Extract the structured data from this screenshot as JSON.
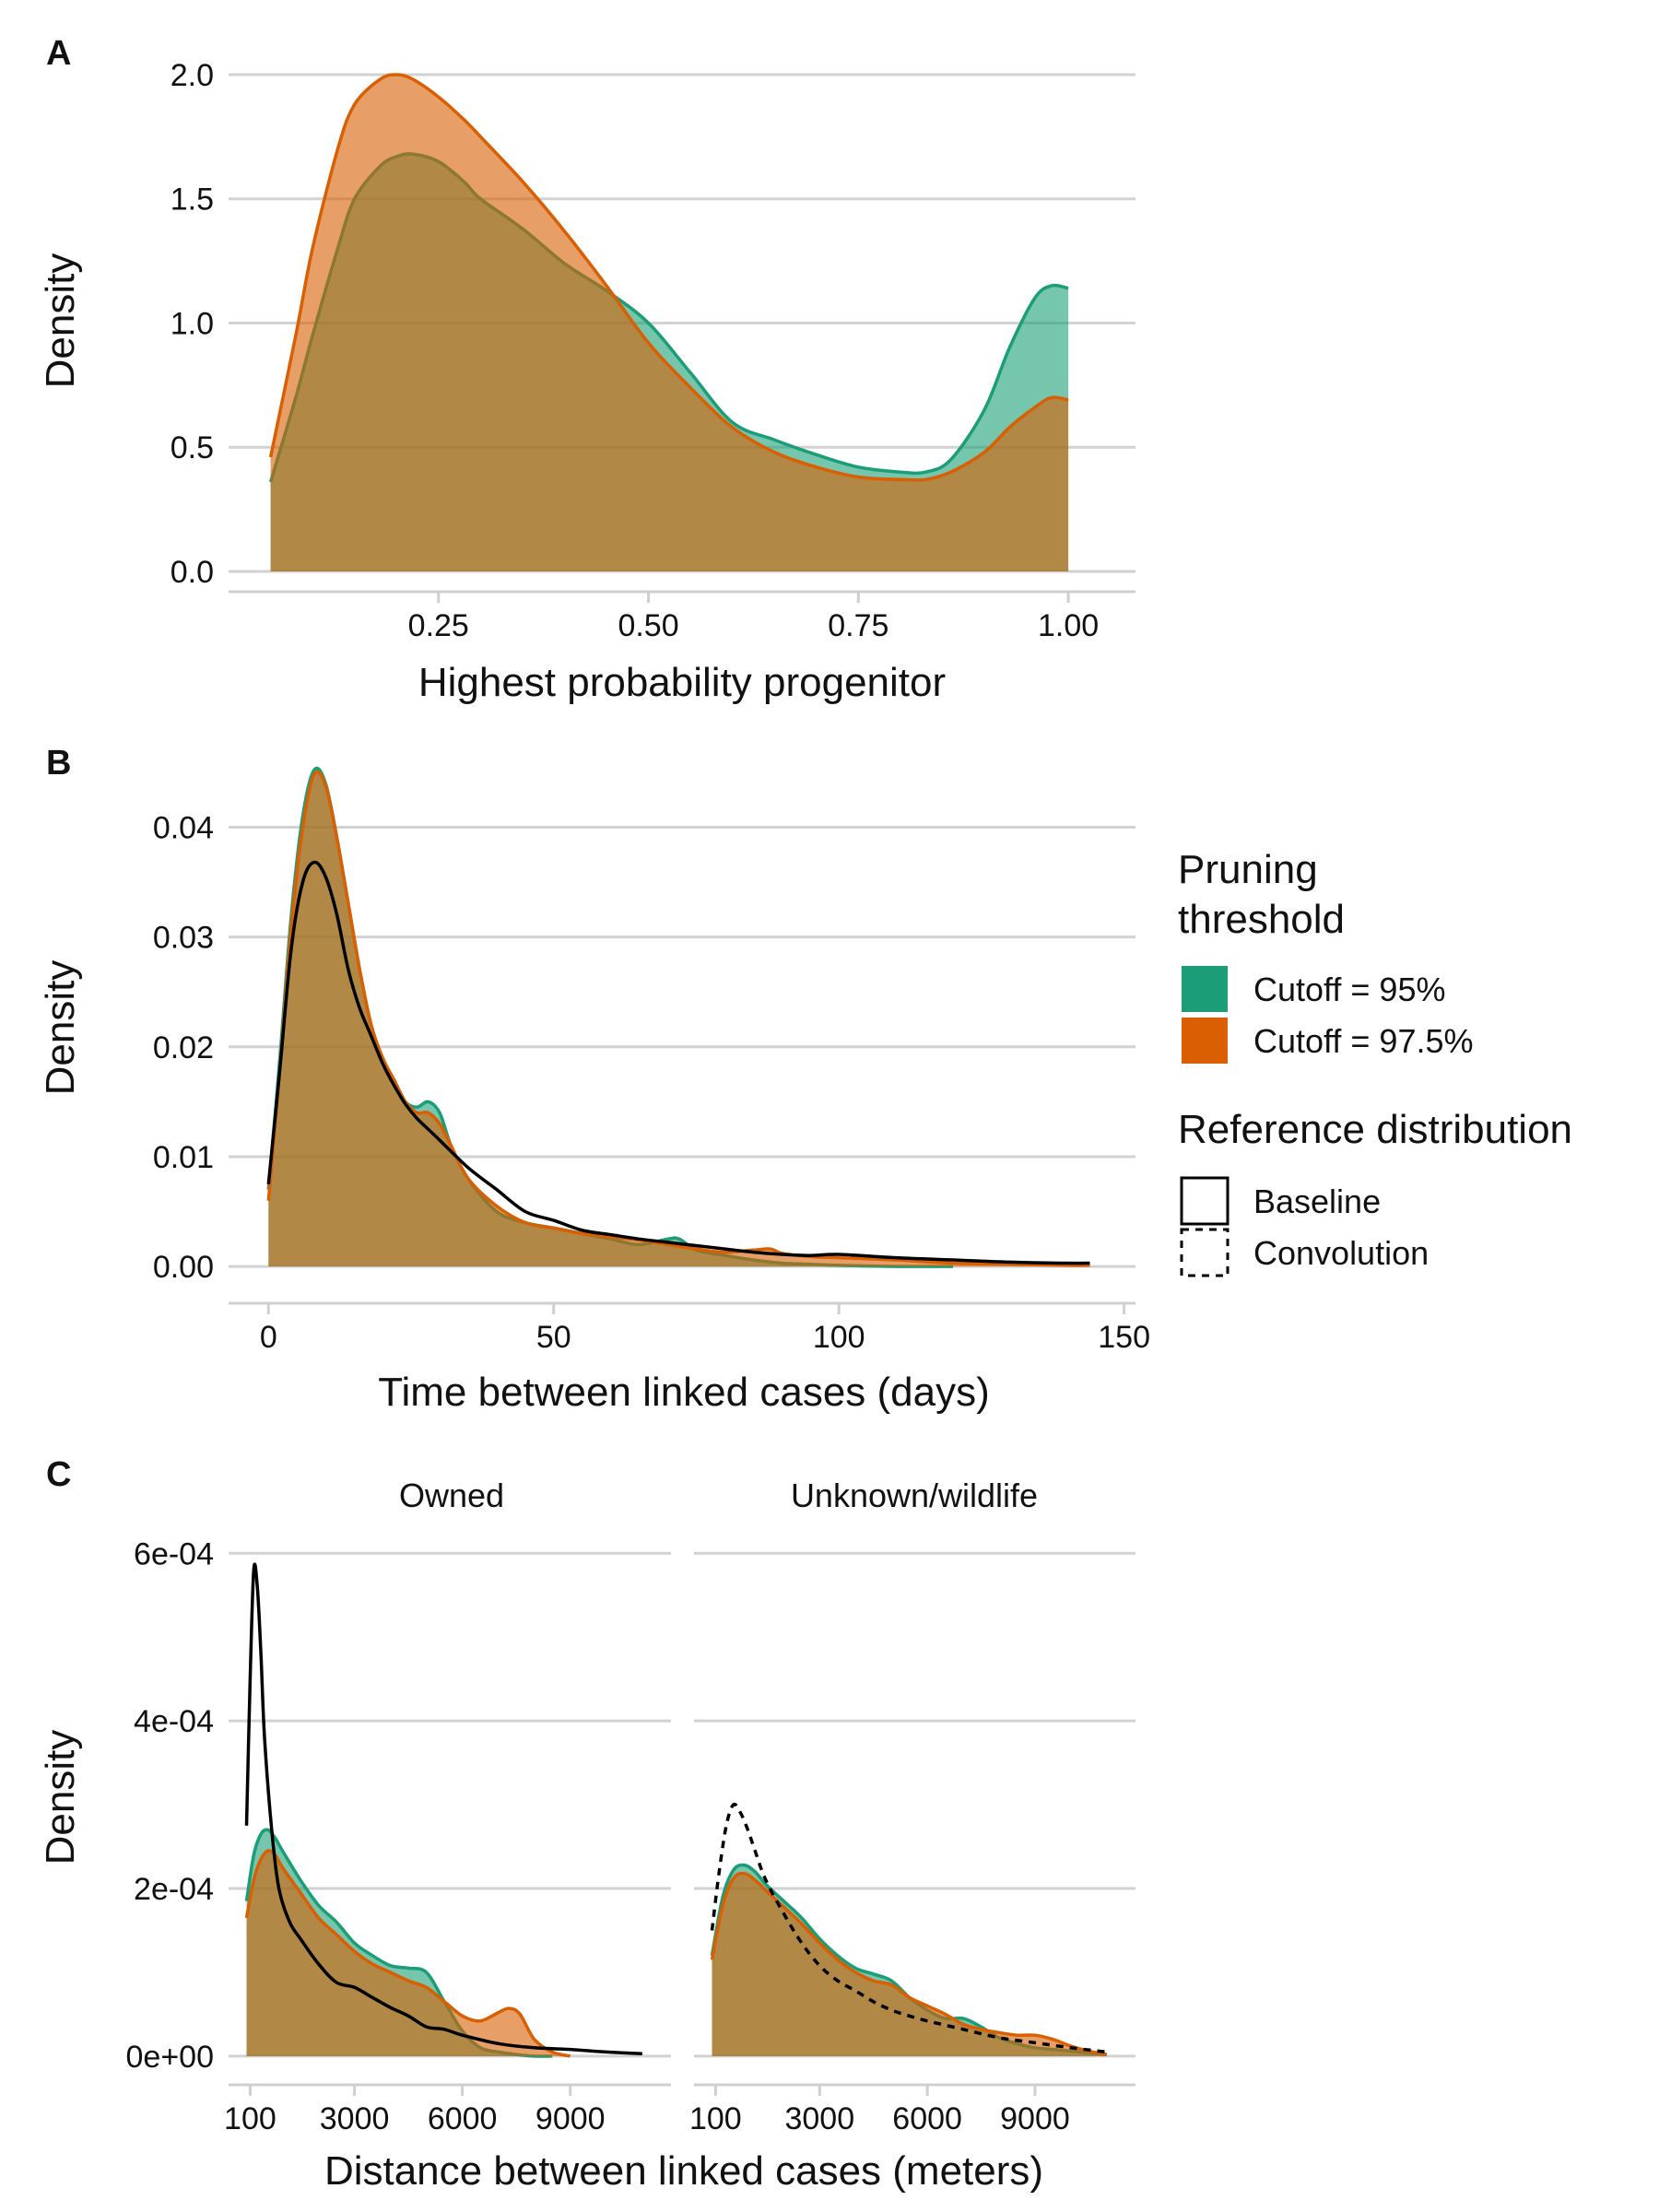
{
  "colors": {
    "cutoff95": "#1b9e77",
    "cutoff975": "#d95f02",
    "reference": "#000000",
    "grid": "#d2d2d2"
  },
  "legend": {
    "fill_title_line1": "Pruning",
    "fill_title_line2": "threshold",
    "fill_items": [
      {
        "label": "Cutoff = 95%",
        "color": "#1b9e77"
      },
      {
        "label": "Cutoff = 97.5%",
        "color": "#d95f02"
      }
    ],
    "line_title": "Reference distribution",
    "line_items": [
      {
        "label": "Baseline",
        "linetype": "solid"
      },
      {
        "label": "Convolution",
        "linetype": "dashed"
      }
    ]
  },
  "chart_data": [
    {
      "panel": "A",
      "type": "area",
      "xlabel": "Highest probability progenitor",
      "ylabel": "Density",
      "xlim": [
        0.0,
        1.08
      ],
      "ylim": [
        0,
        2.1
      ],
      "xticks": [
        0.25,
        0.5,
        0.75,
        1.0
      ],
      "xtick_labels": [
        "0.25",
        "0.50",
        "0.75",
        "1.00"
      ],
      "yticks": [
        0,
        0.5,
        1.0,
        1.5,
        2.0
      ],
      "ytick_labels": [
        "0.0",
        "0.5",
        "1.0",
        "1.5",
        "2.0"
      ],
      "series": [
        {
          "name": "Cutoff = 95%",
          "kind": "fill",
          "x": [
            0.05,
            0.08,
            0.1,
            0.13,
            0.15,
            0.18,
            0.2,
            0.22,
            0.25,
            0.28,
            0.3,
            0.35,
            0.4,
            0.45,
            0.5,
            0.55,
            0.6,
            0.65,
            0.7,
            0.75,
            0.8,
            0.83,
            0.86,
            0.9,
            0.93,
            0.96,
            0.98,
            1.0
          ],
          "y": [
            0.36,
            0.7,
            0.95,
            1.3,
            1.5,
            1.63,
            1.67,
            1.68,
            1.65,
            1.57,
            1.5,
            1.38,
            1.24,
            1.13,
            1.0,
            0.8,
            0.6,
            0.53,
            0.47,
            0.42,
            0.4,
            0.4,
            0.45,
            0.65,
            0.9,
            1.1,
            1.15,
            1.14
          ]
        },
        {
          "name": "Cutoff = 97.5%",
          "kind": "fill",
          "x": [
            0.05,
            0.08,
            0.1,
            0.13,
            0.15,
            0.18,
            0.2,
            0.22,
            0.25,
            0.28,
            0.3,
            0.35,
            0.4,
            0.45,
            0.5,
            0.55,
            0.6,
            0.65,
            0.7,
            0.75,
            0.8,
            0.83,
            0.86,
            0.9,
            0.93,
            0.96,
            0.98,
            1.0
          ],
          "y": [
            0.46,
            0.95,
            1.3,
            1.7,
            1.88,
            1.98,
            2.0,
            1.98,
            1.91,
            1.82,
            1.75,
            1.57,
            1.37,
            1.15,
            0.92,
            0.74,
            0.58,
            0.48,
            0.42,
            0.38,
            0.37,
            0.37,
            0.4,
            0.48,
            0.58,
            0.66,
            0.7,
            0.69
          ]
        }
      ]
    },
    {
      "panel": "B",
      "type": "area",
      "xlabel": "Time between linked cases (days)",
      "ylabel": "Density",
      "xlim": [
        -7,
        152
      ],
      "ylim": [
        -0.0015,
        0.0465
      ],
      "xticks": [
        0,
        50,
        100,
        150
      ],
      "xtick_labels": [
        "0",
        "50",
        "100",
        "150"
      ],
      "yticks": [
        0,
        0.01,
        0.02,
        0.03,
        0.04
      ],
      "ytick_labels": [
        "0.00",
        "0.01",
        "0.02",
        "0.03",
        "0.04"
      ],
      "series": [
        {
          "name": "Cutoff = 95%",
          "kind": "fill",
          "x": [
            0,
            2,
            4,
            6,
            8,
            10,
            12,
            14,
            16,
            18,
            20,
            22,
            24,
            26,
            28,
            30,
            32,
            35,
            40,
            45,
            50,
            55,
            60,
            65,
            70,
            72,
            75,
            80,
            85,
            90,
            95,
            100,
            110,
            120
          ],
          "y": [
            0.007,
            0.019,
            0.032,
            0.041,
            0.0452,
            0.044,
            0.039,
            0.033,
            0.027,
            0.022,
            0.019,
            0.017,
            0.015,
            0.0145,
            0.015,
            0.014,
            0.011,
            0.008,
            0.005,
            0.004,
            0.0035,
            0.003,
            0.0025,
            0.002,
            0.0025,
            0.0025,
            0.0015,
            0.001,
            0.0006,
            0.0003,
            0.0002,
            0.0001,
            0,
            0
          ]
        },
        {
          "name": "Cutoff = 97.5%",
          "kind": "fill",
          "x": [
            0,
            2,
            4,
            6,
            8,
            10,
            12,
            14,
            16,
            18,
            20,
            22,
            24,
            26,
            28,
            30,
            32,
            35,
            40,
            45,
            50,
            55,
            60,
            65,
            70,
            75,
            80,
            85,
            88,
            90,
            95,
            100,
            110,
            120,
            130,
            140,
            144
          ],
          "y": [
            0.006,
            0.018,
            0.031,
            0.04,
            0.0448,
            0.0438,
            0.039,
            0.033,
            0.027,
            0.022,
            0.019,
            0.017,
            0.015,
            0.014,
            0.014,
            0.013,
            0.011,
            0.008,
            0.0055,
            0.004,
            0.0035,
            0.003,
            0.0027,
            0.0024,
            0.002,
            0.0016,
            0.0013,
            0.0015,
            0.0016,
            0.0012,
            0.0009,
            0.0008,
            0.0006,
            0.0003,
            0.0002,
            0.0001,
            0.0001
          ]
        },
        {
          "name": "Baseline",
          "kind": "line",
          "linetype": "solid",
          "x": [
            0,
            2,
            4,
            6,
            8,
            10,
            12,
            14,
            16,
            18,
            20,
            22,
            24,
            26,
            28,
            30,
            35,
            40,
            45,
            50,
            55,
            60,
            65,
            70,
            75,
            80,
            85,
            90,
            95,
            100,
            110,
            120,
            130,
            140,
            144
          ],
          "y": [
            0.0075,
            0.018,
            0.029,
            0.035,
            0.0368,
            0.0355,
            0.032,
            0.027,
            0.0235,
            0.021,
            0.0185,
            0.0165,
            0.0148,
            0.0135,
            0.0125,
            0.0115,
            0.009,
            0.007,
            0.005,
            0.0042,
            0.0033,
            0.0029,
            0.0025,
            0.0022,
            0.0019,
            0.0016,
            0.0013,
            0.0011,
            0.001,
            0.0011,
            0.0008,
            0.0006,
            0.0004,
            0.0003,
            0.0003
          ]
        }
      ]
    },
    {
      "panel": "C",
      "type": "area",
      "xlabel": "Distance between linked cases (meters)",
      "ylabel": "Density",
      "ylim": [
        -1e-05,
        0.00063
      ],
      "yticks": [
        0,
        0.0002,
        0.0004,
        0.0006
      ],
      "ytick_labels": [
        "0e+00",
        "2e-04",
        "4e-04",
        "6e-04"
      ],
      "facets": [
        {
          "strip": "Owned",
          "xlim": [
            -500,
            11800
          ],
          "xticks": [
            100,
            3000,
            6000,
            9000
          ],
          "xtick_labels": [
            "100",
            "3000",
            "6000",
            "9000"
          ],
          "series": [
            {
              "name": "Cutoff = 95%",
              "kind": "fill",
              "x": [
                0,
                200,
                400,
                600,
                800,
                1000,
                1500,
                2000,
                2500,
                3000,
                3500,
                4000,
                4500,
                5000,
                5500,
                6000,
                6500,
                7000,
                7500,
                8000,
                8500
              ],
              "y": [
                0.000185,
                0.00024,
                0.000265,
                0.00027,
                0.00026,
                0.000245,
                0.00021,
                0.00018,
                0.00016,
                0.000135,
                0.00012,
                0.000108,
                0.000105,
                0.0001,
                6.5e-05,
                3e-05,
                1e-05,
                5e-06,
                2e-06,
                0,
                0
              ]
            },
            {
              "name": "Cutoff = 97.5%",
              "kind": "fill",
              "x": [
                0,
                200,
                400,
                600,
                800,
                1000,
                1500,
                2000,
                2500,
                3000,
                3500,
                4000,
                4500,
                5000,
                5500,
                6000,
                6500,
                7000,
                7300,
                7600,
                8000,
                8500,
                9000
              ],
              "y": [
                0.000165,
                0.00021,
                0.000235,
                0.000245,
                0.00024,
                0.000225,
                0.000195,
                0.000165,
                0.000145,
                0.000125,
                0.00011,
                0.0001,
                9e-05,
                8.2e-05,
                6.5e-05,
                4.8e-05,
                4.2e-05,
                5.2e-05,
                5.7e-05,
                5e-05,
                2e-05,
                5e-06,
                0
              ]
            },
            {
              "name": "Baseline",
              "kind": "line",
              "linetype": "solid",
              "x": [
                0,
                100,
                200,
                300,
                400,
                500,
                700,
                900,
                1200,
                1500,
                2000,
                2500,
                3000,
                3500,
                4000,
                4500,
                5000,
                5500,
                6000,
                7000,
                8000,
                9000,
                10000,
                11000
              ],
              "y": [
                0.000275,
                0.00045,
                0.00058,
                0.00056,
                0.00048,
                0.00038,
                0.00027,
                0.0002,
                0.00016,
                0.00014,
                0.00011,
                8.8e-05,
                8.2e-05,
                7e-05,
                5.8e-05,
                4.8e-05,
                3.5e-05,
                3.2e-05,
                2.5e-05,
                1.5e-05,
                1e-05,
                8e-06,
                5e-06,
                3e-06
              ]
            }
          ]
        },
        {
          "strip": "Unknown/wildlife",
          "xlim": [
            -500,
            11800
          ],
          "xticks": [
            100,
            3000,
            6000,
            9000
          ],
          "xtick_labels": [
            "100",
            "3000",
            "6000",
            "9000"
          ],
          "series": [
            {
              "name": "Cutoff = 95%",
              "kind": "fill",
              "x": [
                0,
                300,
                600,
                900,
                1200,
                1500,
                2000,
                2500,
                3000,
                3500,
                4000,
                4500,
                5000,
                5500,
                6000,
                6500,
                7000,
                7500,
                8000,
                8500,
                9000,
                9500,
                10000,
                10500,
                11000
              ],
              "y": [
                0.00012,
                0.00019,
                0.000222,
                0.000228,
                0.00022,
                0.000205,
                0.000185,
                0.000165,
                0.00014,
                0.00012,
                0.000105,
                9.8e-05,
                9e-05,
                7e-05,
                5.5e-05,
                4.5e-05,
                4.5e-05,
                3.5e-05,
                2.2e-05,
                1.5e-05,
                1e-05,
                8e-06,
                6e-06,
                4e-06,
                2e-06
              ]
            },
            {
              "name": "Cutoff = 97.5%",
              "kind": "fill",
              "x": [
                0,
                300,
                600,
                900,
                1200,
                1500,
                2000,
                2500,
                3000,
                3500,
                4000,
                4500,
                5000,
                5500,
                6000,
                6500,
                7000,
                7500,
                8000,
                8500,
                9000,
                9500,
                10000,
                10500,
                11000
              ],
              "y": [
                0.000115,
                0.00018,
                0.000212,
                0.000218,
                0.00021,
                0.000198,
                0.000178,
                0.000158,
                0.000135,
                0.000115,
                0.0001,
                9e-05,
                8.5e-05,
                7e-05,
                6e-05,
                5e-05,
                3.8e-05,
                3.2e-05,
                2.8e-05,
                2.5e-05,
                2.5e-05,
                2e-05,
                1.2e-05,
                6e-06,
                2e-06
              ]
            },
            {
              "name": "Convolution",
              "kind": "line",
              "linetype": "dashed",
              "x": [
                0,
                200,
                400,
                600,
                800,
                1000,
                1200,
                1500,
                2000,
                2500,
                3000,
                3500,
                4000,
                4500,
                5000,
                5500,
                6000,
                7000,
                8000,
                9000,
                10000,
                11000
              ],
              "y": [
                0.00015,
                0.00022,
                0.000275,
                0.0003,
                0.00029,
                0.00027,
                0.000245,
                0.00021,
                0.00017,
                0.000135,
                0.000108,
                9e-05,
                7.8e-05,
                6.5e-05,
                5.5e-05,
                4.8e-05,
                4.2e-05,
                3.2e-05,
                2.2e-05,
                1.6e-05,
                1e-05,
                5e-06
              ]
            }
          ]
        }
      ]
    }
  ],
  "panels": {
    "A": {
      "letter": "A",
      "xlabel": "Highest probability progenitor",
      "ylabel": "Density"
    },
    "B": {
      "letter": "B",
      "xlabel": "Time between linked cases (days)",
      "ylabel": "Density"
    },
    "C": {
      "letter": "C",
      "xlabel": "Distance between linked cases (meters)",
      "ylabel": "Density",
      "strip_left": "Owned",
      "strip_right": "Unknown/wildlife"
    }
  }
}
